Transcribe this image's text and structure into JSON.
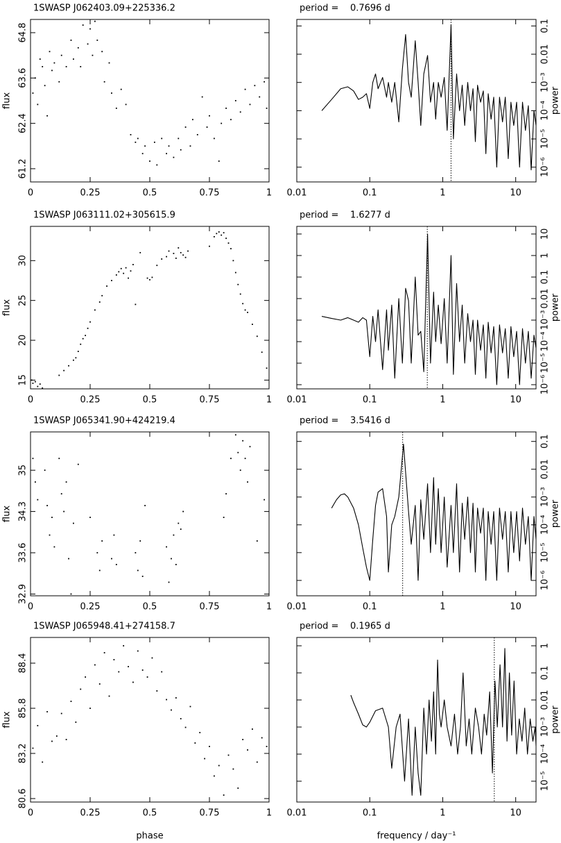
{
  "chart_data": [
    {
      "type": "scatter",
      "title": "1SWASP J062403.09+225336.2",
      "ylabel": "flux",
      "color": "#000000",
      "x": [
        0.01,
        0.02,
        0.03,
        0.04,
        0.05,
        0.06,
        0.07,
        0.08,
        0.09,
        0.1,
        0.12,
        0.13,
        0.15,
        0.17,
        0.18,
        0.2,
        0.21,
        0.22,
        0.24,
        0.25,
        0.26,
        0.27,
        0.28,
        0.3,
        0.31,
        0.33,
        0.34,
        0.36,
        0.38,
        0.4,
        0.42,
        0.44,
        0.45,
        0.47,
        0.48,
        0.5,
        0.52,
        0.53,
        0.55,
        0.57,
        0.58,
        0.6,
        0.62,
        0.63,
        0.65,
        0.67,
        0.68,
        0.7,
        0.72,
        0.74,
        0.75,
        0.77,
        0.79,
        0.8,
        0.82,
        0.84,
        0.86,
        0.88,
        0.9,
        0.92,
        0.94,
        0.96,
        0.98,
        0.99
      ],
      "values": [
        63.2,
        63.6,
        62.9,
        64.1,
        63.9,
        63.4,
        62.6,
        64.3,
        63.8,
        64.0,
        63.5,
        64.2,
        63.9,
        64.6,
        64.1,
        64.4,
        63.9,
        65.0,
        64.5,
        64.9,
        64.2,
        65.1,
        64.6,
        64.3,
        63.5,
        64.0,
        63.2,
        62.8,
        63.3,
        62.9,
        62.1,
        61.9,
        62.0,
        61.6,
        61.8,
        61.4,
        61.9,
        61.3,
        62.0,
        61.6,
        61.8,
        61.5,
        62.0,
        61.7,
        62.3,
        61.8,
        62.5,
        62.1,
        63.1,
        62.3,
        62.6,
        62.0,
        61.4,
        62.4,
        62.8,
        62.5,
        63.0,
        62.7,
        63.3,
        62.9,
        63.4,
        63.1,
        63.5,
        62.8
      ],
      "xlim": [
        0,
        1
      ],
      "xticks": [
        0,
        0.25,
        0.5,
        0.75,
        1
      ],
      "ylim": [
        60.85,
        65.15
      ],
      "yticks": [
        61.2,
        62.4,
        63.6,
        64.8
      ]
    },
    {
      "type": "line",
      "title": "period =    0.7696 d",
      "ylabel": "power",
      "color": "#000000",
      "xlog": true,
      "ylog": true,
      "vline": 1.2994,
      "x": [
        0.022,
        0.03,
        0.04,
        0.05,
        0.06,
        0.07,
        0.08,
        0.09,
        0.1,
        0.11,
        0.12,
        0.13,
        0.15,
        0.17,
        0.18,
        0.2,
        0.22,
        0.25,
        0.28,
        0.31,
        0.34,
        0.37,
        0.42,
        0.46,
        0.5,
        0.55,
        0.62,
        0.68,
        0.75,
        0.8,
        0.87,
        0.95,
        1.05,
        1.15,
        1.3,
        1.4,
        1.55,
        1.7,
        1.85,
        2.0,
        2.2,
        2.4,
        2.6,
        2.8,
        3.0,
        3.3,
        3.6,
        3.9,
        4.2,
        4.6,
        5.0,
        5.5,
        6.0,
        6.6,
        7.2,
        7.9,
        8.6,
        9.4,
        10.3,
        11.3,
        12.4,
        13.6,
        14.9,
        16.3,
        17.8,
        19
      ],
      "values": [
        0.0001,
        0.00025,
        0.0006,
        0.0007,
        0.0005,
        0.00025,
        0.0003,
        0.0004,
        0.00012,
        0.001,
        0.002,
        0.0006,
        0.0015,
        0.0003,
        0.001,
        0.0002,
        0.001,
        4e-05,
        0.003,
        0.05,
        0.001,
        0.0003,
        0.03,
        0.001,
        3e-05,
        0.002,
        0.009,
        0.0002,
        0.001,
        5e-05,
        0.001,
        0.0003,
        0.0015,
        2e-05,
        0.11,
        1e-05,
        0.002,
        0.0001,
        0.0008,
        3e-05,
        0.001,
        0.0001,
        0.0006,
        8e-06,
        0.0008,
        0.0002,
        0.0005,
        3e-06,
        0.0004,
        5e-05,
        0.0003,
        1e-06,
        0.0003,
        4e-05,
        0.0003,
        2e-06,
        0.0002,
        3e-05,
        0.0002,
        1e-06,
        0.0002,
        2e-05,
        0.00015,
        8e-07,
        0.0001,
        3e-05
      ],
      "xlim": [
        0.01,
        19
      ],
      "xticks": [
        0.01,
        0.1,
        1,
        10
      ],
      "ylim": [
        3e-07,
        0.17
      ],
      "yticks": [
        {
          "value": 1e-06,
          "label": "10⁻⁶"
        },
        {
          "value": 1e-05,
          "label": "10⁻⁵"
        },
        {
          "value": 0.0001,
          "label": "10⁻⁴"
        },
        {
          "value": 0.001,
          "label": "10⁻³"
        },
        0.01,
        0.1
      ]
    },
    {
      "type": "scatter",
      "title": "1SWASP J063111.02+305615.9",
      "ylabel": "flux",
      "color": "#000000",
      "x": [
        0.005,
        0.01,
        0.02,
        0.03,
        0.04,
        0.05,
        0.12,
        0.14,
        0.16,
        0.18,
        0.19,
        0.2,
        0.21,
        0.22,
        0.23,
        0.24,
        0.25,
        0.27,
        0.29,
        0.3,
        0.32,
        0.34,
        0.36,
        0.37,
        0.38,
        0.39,
        0.4,
        0.41,
        0.42,
        0.43,
        0.44,
        0.46,
        0.49,
        0.5,
        0.51,
        0.53,
        0.55,
        0.57,
        0.58,
        0.6,
        0.61,
        0.62,
        0.63,
        0.64,
        0.65,
        0.66,
        0.75,
        0.77,
        0.78,
        0.79,
        0.8,
        0.81,
        0.82,
        0.83,
        0.84,
        0.85,
        0.86,
        0.87,
        0.88,
        0.89,
        0.9,
        0.91,
        0.93,
        0.95,
        0.97,
        0.99
      ],
      "values": [
        15.0,
        14.6,
        14.8,
        14.2,
        14.5,
        14.0,
        15.6,
        16.2,
        16.8,
        17.5,
        17.8,
        18.6,
        19.5,
        20.2,
        20.6,
        21.5,
        22.3,
        23.8,
        24.8,
        25.6,
        26.8,
        27.5,
        28.2,
        28.6,
        29.0,
        28.4,
        29.1,
        27.8,
        28.7,
        29.5,
        24.5,
        31.0,
        27.8,
        27.6,
        27.9,
        29.4,
        30.2,
        30.5,
        31.2,
        30.9,
        30.3,
        31.6,
        31.0,
        30.7,
        30.4,
        31.2,
        31.8,
        33.0,
        33.4,
        33.6,
        33.2,
        33.5,
        32.8,
        32.2,
        31.5,
        30.0,
        28.5,
        27.0,
        25.8,
        24.6,
        23.8,
        23.5,
        22.0,
        20.5,
        18.5,
        16.5
      ],
      "xlim": [
        0,
        1
      ],
      "xticks": [
        0,
        0.25,
        0.5,
        0.75,
        1
      ],
      "ylim": [
        13.9,
        34.3
      ],
      "yticks": [
        15,
        20,
        25,
        30
      ]
    },
    {
      "type": "line",
      "title": "period =    1.6277 d",
      "ylabel": "power",
      "color": "#000000",
      "xlog": true,
      "ylog": true,
      "vline": 0.6144,
      "x": [
        0.022,
        0.03,
        0.04,
        0.05,
        0.06,
        0.07,
        0.08,
        0.09,
        0.1,
        0.11,
        0.12,
        0.13,
        0.15,
        0.17,
        0.18,
        0.2,
        0.22,
        0.25,
        0.28,
        0.31,
        0.34,
        0.37,
        0.42,
        0.46,
        0.5,
        0.55,
        0.62,
        0.68,
        0.75,
        0.8,
        0.87,
        0.95,
        1.05,
        1.15,
        1.3,
        1.4,
        1.55,
        1.7,
        1.85,
        2.0,
        2.2,
        2.4,
        2.6,
        2.8,
        3.0,
        3.3,
        3.6,
        3.9,
        4.2,
        4.6,
        5.0,
        5.5,
        6.0,
        6.6,
        7.2,
        7.9,
        8.6,
        9.4,
        10.3,
        11.3,
        12.4,
        13.6,
        14.9,
        16.3,
        17.8,
        19
      ],
      "values": [
        0.0015,
        0.0012,
        0.001,
        0.0013,
        0.001,
        0.0008,
        0.0013,
        0.001,
        2e-05,
        0.0015,
        0.0001,
        0.003,
        5e-06,
        0.003,
        4e-05,
        0.005,
        2e-06,
        0.01,
        1e-05,
        0.03,
        0.008,
        1e-05,
        0.1,
        0.0002,
        0.0003,
        4e-06,
        10,
        1e-05,
        0.02,
        0.0001,
        0.005,
        8e-05,
        0.01,
        1e-05,
        1,
        3e-06,
        0.05,
        0.0001,
        0.005,
        1e-05,
        0.002,
        0.0001,
        0.001,
        3e-06,
        0.001,
        4e-05,
        0.0006,
        2e-06,
        0.0008,
        3e-05,
        0.0005,
        1e-06,
        0.0006,
        3e-05,
        0.0004,
        2e-06,
        0.0005,
        2e-05,
        0.0003,
        1e-06,
        0.0004,
        1e-05,
        0.0003,
        2e-06,
        0.0002,
        5e-05
      ],
      "xlim": [
        0.01,
        19
      ],
      "xticks": [
        0.01,
        0.1,
        1,
        10
      ],
      "ylim": [
        6.4e-07,
        22.6
      ],
      "yticks": [
        {
          "value": 1e-06,
          "label": "10⁻⁶"
        },
        {
          "value": 1e-05,
          "label": "10⁻⁵"
        },
        {
          "value": 0.0001,
          "label": "10⁻⁴"
        },
        {
          "value": 0.001,
          "label": "10⁻³"
        },
        0.01,
        0.1,
        1,
        10
      ]
    },
    {
      "type": "scatter",
      "title": "1SWASP J065341.90+424219.4",
      "ylabel": "flux",
      "color": "#000000",
      "x": [
        0.01,
        0.02,
        0.03,
        0.06,
        0.07,
        0.08,
        0.09,
        0.1,
        0.12,
        0.13,
        0.14,
        0.15,
        0.16,
        0.17,
        0.18,
        0.2,
        0.25,
        0.28,
        0.29,
        0.3,
        0.34,
        0.35,
        0.36,
        0.44,
        0.45,
        0.46,
        0.47,
        0.48,
        0.57,
        0.58,
        0.59,
        0.6,
        0.61,
        0.62,
        0.63,
        0.64,
        0.81,
        0.82,
        0.84,
        0.86,
        0.87,
        0.88,
        0.89,
        0.9,
        0.91,
        0.92,
        0.95,
        0.98
      ],
      "values": [
        35.2,
        34.8,
        34.5,
        35.0,
        34.4,
        33.9,
        34.2,
        33.7,
        35.2,
        34.6,
        34.3,
        34.8,
        33.5,
        32.9,
        34.1,
        35.1,
        34.2,
        33.6,
        33.3,
        33.8,
        33.5,
        33.9,
        33.4,
        33.6,
        33.3,
        33.8,
        33.2,
        34.4,
        33.7,
        33.1,
        33.5,
        33.9,
        33.4,
        34.1,
        34.0,
        34.3,
        34.2,
        34.6,
        35.2,
        35.6,
        35.3,
        35.0,
        35.5,
        35.2,
        34.8,
        35.4,
        33.8,
        34.5
      ],
      "xlim": [
        0,
        1
      ],
      "xticks": [
        0,
        0.25,
        0.5,
        0.75,
        1
      ],
      "ylim": [
        32.87,
        35.65
      ],
      "yticks": [
        32.9,
        33.6,
        34.3,
        35
      ]
    },
    {
      "type": "line",
      "title": "period =    3.5416 d",
      "ylabel": "power",
      "color": "#000000",
      "xlog": true,
      "ylog": true,
      "vline": 0.2824,
      "x": [
        0.03,
        0.035,
        0.04,
        0.045,
        0.05,
        0.06,
        0.07,
        0.08,
        0.09,
        0.1,
        0.11,
        0.12,
        0.13,
        0.15,
        0.17,
        0.18,
        0.2,
        0.22,
        0.25,
        0.29,
        0.34,
        0.37,
        0.42,
        0.46,
        0.5,
        0.55,
        0.62,
        0.68,
        0.75,
        0.8,
        0.87,
        0.95,
        1.05,
        1.15,
        1.3,
        1.4,
        1.55,
        1.7,
        1.85,
        2.0,
        2.2,
        2.4,
        2.6,
        2.8,
        3.0,
        3.3,
        3.6,
        3.9,
        4.2,
        4.6,
        5.0,
        5.5,
        6.0,
        6.6,
        7.2,
        7.9,
        8.6,
        9.4,
        10.3,
        11.3,
        12.4,
        13.6,
        14.9,
        16.3,
        17.8,
        19
      ],
      "values": [
        0.0004,
        0.0008,
        0.0012,
        0.0013,
        0.001,
        0.0004,
        0.0001,
        1.5e-05,
        3e-06,
        1e-06,
        3e-05,
        0.0005,
        0.0015,
        0.002,
        0.0002,
        2e-06,
        0.0001,
        0.0002,
        0.001,
        0.08,
        0.0003,
        2e-05,
        0.0005,
        1e-06,
        0.0008,
        3e-05,
        0.003,
        1e-05,
        0.005,
        2e-05,
        0.002,
        1e-05,
        0.001,
        3e-06,
        0.0005,
        1e-05,
        0.003,
        2e-06,
        0.0006,
        3e-05,
        0.001,
        1e-05,
        0.0006,
        2e-06,
        0.0004,
        5e-05,
        0.0004,
        1e-06,
        0.0003,
        2e-05,
        0.0003,
        1e-06,
        0.0004,
        3e-05,
        0.0003,
        2e-06,
        0.0003,
        1e-05,
        0.0003,
        5e-06,
        0.0004,
        2e-05,
        0.0002,
        1e-06,
        0.0002,
        3e-05
      ],
      "xlim": [
        0.01,
        19
      ],
      "xticks": [
        0.01,
        0.1,
        1,
        10
      ],
      "ylim": [
        2.8e-07,
        0.22
      ],
      "yticks": [
        {
          "value": 1e-06,
          "label": "10⁻⁶"
        },
        {
          "value": 1e-05,
          "label": "10⁻⁵"
        },
        {
          "value": 0.0001,
          "label": "10⁻⁴"
        },
        {
          "value": 0.001,
          "label": "10⁻³"
        },
        0.01,
        0.1
      ]
    },
    {
      "type": "scatter",
      "title": "1SWASP J065948.41+274158.7",
      "ylabel": "flux",
      "xlabel": "phase",
      "color": "#000000",
      "x": [
        0.01,
        0.03,
        0.05,
        0.07,
        0.09,
        0.11,
        0.13,
        0.15,
        0.17,
        0.19,
        0.21,
        0.23,
        0.25,
        0.27,
        0.29,
        0.31,
        0.33,
        0.35,
        0.37,
        0.39,
        0.41,
        0.43,
        0.45,
        0.47,
        0.49,
        0.51,
        0.53,
        0.55,
        0.57,
        0.59,
        0.61,
        0.63,
        0.65,
        0.67,
        0.69,
        0.71,
        0.73,
        0.75,
        0.77,
        0.79,
        0.81,
        0.83,
        0.85,
        0.87,
        0.89,
        0.91,
        0.93,
        0.95,
        0.97,
        0.99
      ],
      "values": [
        83.5,
        84.8,
        82.7,
        85.6,
        83.9,
        84.2,
        85.5,
        84.0,
        86.2,
        85.0,
        86.9,
        87.6,
        85.8,
        88.3,
        87.2,
        89.0,
        86.5,
        88.6,
        87.9,
        89.4,
        88.2,
        87.3,
        89.1,
        88.0,
        87.6,
        88.7,
        86.8,
        87.9,
        86.3,
        85.7,
        86.4,
        85.2,
        84.7,
        85.9,
        83.8,
        84.4,
        82.9,
        83.6,
        81.9,
        82.5,
        80.8,
        83.1,
        82.3,
        81.2,
        84.0,
        83.4,
        84.6,
        82.7,
        84.1,
        83.6
      ],
      "xlim": [
        0,
        1
      ],
      "xticks": [
        0,
        0.25,
        0.5,
        0.75,
        1
      ],
      "ylim": [
        80.4,
        89.88
      ],
      "yticks": [
        80.6,
        83.2,
        85.8,
        88.4
      ]
    },
    {
      "type": "line",
      "title": "period =    0.1965 d",
      "ylabel": "power",
      "xlabel": "frequency / day⁻¹",
      "color": "#000000",
      "xlog": true,
      "ylog": true,
      "vline": 5.089,
      "x": [
        0.055,
        0.06,
        0.07,
        0.08,
        0.09,
        0.1,
        0.12,
        0.15,
        0.18,
        0.2,
        0.23,
        0.26,
        0.3,
        0.34,
        0.38,
        0.42,
        0.46,
        0.5,
        0.55,
        0.6,
        0.65,
        0.7,
        0.75,
        0.8,
        0.85,
        0.9,
        0.95,
        1.05,
        1.15,
        1.3,
        1.45,
        1.6,
        1.75,
        1.9,
        2.1,
        2.3,
        2.5,
        2.8,
        3.1,
        3.4,
        3.7,
        4.0,
        4.4,
        4.8,
        5.2,
        5.6,
        6.1,
        6.6,
        7.1,
        7.6,
        8.2,
        8.8,
        9.5,
        10.3,
        11.2,
        12.2,
        13.3,
        14.5,
        15.8,
        17.2,
        18.5,
        19
      ],
      "values": [
        0.015,
        0.008,
        0.003,
        0.0012,
        0.001,
        0.0015,
        0.004,
        0.005,
        0.001,
        3e-05,
        0.001,
        0.003,
        1e-05,
        0.002,
        3e-06,
        0.001,
        2e-05,
        3e-06,
        0.005,
        0.0001,
        0.01,
        0.0003,
        0.02,
        0.0001,
        0.3,
        0.003,
        0.001,
        0.01,
        0.001,
        0.0002,
        0.003,
        0.0001,
        0.001,
        0.1,
        0.0002,
        0.002,
        0.0001,
        0.005,
        0.001,
        0.0001,
        0.003,
        0.0005,
        0.02,
        2e-05,
        0.05,
        0.001,
        0.2,
        0.001,
        0.8,
        0.0003,
        0.1,
        0.0005,
        0.05,
        0.0001,
        0.002,
        0.0003,
        0.005,
        0.0001,
        0.002,
        0.0003,
        0.001,
        0.0002
      ],
      "xlim": [
        0.01,
        19
      ],
      "xticks": [
        0.01,
        0.1,
        1,
        10
      ],
      "ylim": [
        1.7e-06,
        2.03
      ],
      "yticks": [
        {
          "value": 1e-05,
          "label": "10⁻⁵"
        },
        {
          "value": 0.0001,
          "label": "10⁻⁴"
        },
        {
          "value": 0.001,
          "label": "10⁻³"
        },
        0.01,
        0.1,
        1
      ]
    }
  ]
}
